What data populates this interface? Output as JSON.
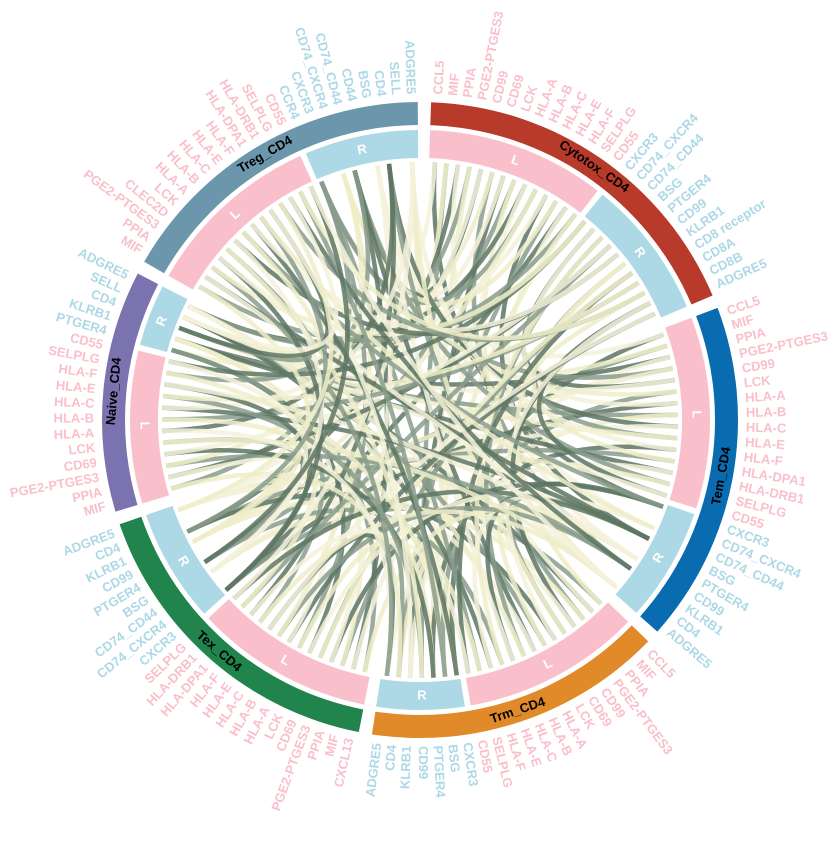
{
  "chart_data": {
    "type": "chord",
    "track_labels": {
      "ligand": "L",
      "receptor": "R"
    },
    "ligand_color": "#f9c0cb",
    "receptor_color": "#add8e6",
    "sectors": [
      {
        "name": "Cytotox_CD4",
        "color": "#b83a2b",
        "ligands": [
          "CCL5",
          "MIF",
          "PPIA",
          "PGE2-PTGES3",
          "CD99",
          "CD69",
          "LCK",
          "HLA-A",
          "HLA-B",
          "HLA-C",
          "HLA-E",
          "HLA-F",
          "SELPLG",
          "CD55"
        ],
        "receptors": [
          "CXCR3",
          "CD74_CXCR4",
          "CD74_CD44",
          "BSG",
          "PTGER4",
          "CD99",
          "KLRB1",
          "CD8 receptor",
          "CD8A",
          "CD8B",
          "ADGRE5"
        ]
      },
      {
        "name": "Tem_CD4",
        "color": "#0a6cb0",
        "ligands": [
          "CCL5",
          "MIF",
          "PPIA",
          "PGE2-PTGES3",
          "CD99",
          "LCK",
          "HLA-A",
          "HLA-B",
          "HLA-C",
          "HLA-E",
          "HLA-F",
          "HLA-DPA1",
          "HLA-DRB1",
          "SELPLG",
          "CD55"
        ],
        "receptors": [
          "CXCR3",
          "CD74_CXCR4",
          "CD74_CD44",
          "BSG",
          "PTGER4",
          "CD99",
          "KLRB1",
          "CD4",
          "ADGRE5"
        ]
      },
      {
        "name": "Trm_CD4",
        "color": "#e08a2a",
        "ligands": [
          "CCL5",
          "MIF",
          "PPIA",
          "PGE2-PTGES3",
          "CD99",
          "CD69",
          "LCK",
          "HLA-A",
          "HLA-B",
          "HLA-C",
          "HLA-E",
          "HLA-F",
          "SELPLG",
          "CD55"
        ],
        "receptors": [
          "CXCR3",
          "BSG",
          "PTGER4",
          "CD99",
          "KLRB1",
          "CD4",
          "ADGRE5"
        ]
      },
      {
        "name": "Tex_CD4",
        "color": "#21844c",
        "ligands": [
          "CXCL13",
          "MIF",
          "PPIA",
          "PGE2-PTGES3",
          "CD69",
          "LCK",
          "HLA-A",
          "HLA-B",
          "HLA-C",
          "HLA-E",
          "HLA-F",
          "HLA-DPA1",
          "HLA-DRB1",
          "SELPLG"
        ],
        "receptors": [
          "CXCR3",
          "CD74_CXCR4",
          "CD74_CD44",
          "BSG",
          "PTGER4",
          "CD99",
          "KLRB1",
          "CD4",
          "ADGRE5"
        ]
      },
      {
        "name": "Naive_CD4",
        "color": "#7b73b0",
        "ligands": [
          "MIF",
          "PPIA",
          "PGE2-PTGES3",
          "CD69",
          "LCK",
          "HLA-A",
          "HLA-B",
          "HLA-C",
          "HLA-E",
          "HLA-F",
          "SELPLG",
          "CD55"
        ],
        "receptors": [
          "PTGER4",
          "KLRB1",
          "CD4",
          "SELL",
          "ADGRE5"
        ]
      },
      {
        "name": "Treg_CD4",
        "color": "#6b96ab",
        "ligands": [
          "MIF",
          "PPIA",
          "PGE2-PTGES3",
          "CLEC2D",
          "LCK",
          "HLA-A",
          "HLA-B",
          "HLA-C",
          "HLA-E",
          "HLA-F",
          "HLA-DPA1",
          "HLA-DRB1",
          "SELPLG",
          "CD55"
        ],
        "receptors": [
          "CCR4",
          "CXCR3",
          "CD74_CXCR4",
          "CD74_CD44",
          "CD44",
          "BSG",
          "CD4",
          "SELL",
          "ADGRE5"
        ]
      }
    ]
  }
}
